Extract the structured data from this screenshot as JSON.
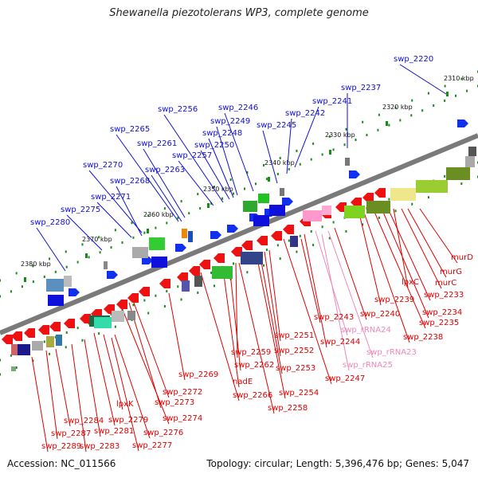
{
  "header": {
    "title": "Shewanella piezotolerans WP3, complete genome"
  },
  "footer": {
    "accession": "Accession: NC_011566",
    "summary": "Topology: circular; Length: 5,396,476 bp; Genes: 5,047"
  },
  "colors": {
    "forward_label": "#1010cc",
    "reverse_label": "#dd0000",
    "rna_label": "#ee88bb",
    "backbone": "#7a7a7a",
    "ruler_tick": "#1a8a1a"
  },
  "ruler": {
    "unit": "kbp",
    "ticks": [
      "2310 kbp",
      "2320 kbp",
      "2330 kbp",
      "2340 kbp",
      "2350 kbp",
      "2360 kbp",
      "2370 kbp",
      "2380 kbp"
    ]
  },
  "genes_forward": [
    "swp_2220",
    "swp_2237",
    "swp_2241",
    "swp_2242",
    "swp_2245",
    "swp_2246",
    "swp_2256",
    "swp_2249",
    "swp_2248",
    "swp_2250",
    "swp_2257",
    "swp_2265",
    "swp_2261",
    "swp_2263",
    "swp_2270",
    "swp_2268",
    "swp_2271",
    "swp_2275",
    "swp_2280"
  ],
  "genes_reverse": [
    "murD",
    "murG",
    "murC",
    "lpxC",
    "swp_2233",
    "swp_2234",
    "swp_2235",
    "swp_2239",
    "swp_2238",
    "swp_2240",
    "swp_2243",
    "swp_2244",
    "swp_2247",
    "swp_2251",
    "swp_2252",
    "swp_2253",
    "swp_2254",
    "swp_2258",
    "swp_2259",
    "swp_2262",
    "nadE",
    "swp_2266",
    "swp_2269",
    "swp_2272",
    "swp_2273",
    "swp_2274",
    "lpxK",
    "swp_2279",
    "swp_2276",
    "swp_2281",
    "swp_2277",
    "swp_2284",
    "swp_2287",
    "swp_2283",
    "swp_2289"
  ],
  "genes_rna": [
    "swp_rRNA24",
    "swp_rRNA23",
    "swp_rRNA25"
  ]
}
